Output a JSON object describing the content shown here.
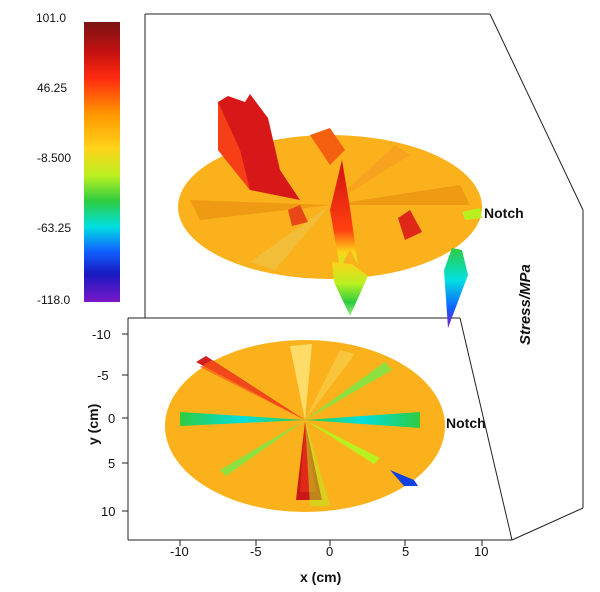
{
  "chart_data": {
    "type": "heatmap",
    "title": "",
    "zlabel": "Stress/MPa",
    "xlabel": "x (cm)",
    "ylabel": "y (cm)",
    "annotation_top": "Notch",
    "annotation_bottom": "Notch",
    "colorbar": {
      "ticks": [
        "101.0",
        "46.25",
        "-8.500",
        "-63.25",
        "-118.0"
      ],
      "min": -118.0,
      "max": 101.0,
      "colors": [
        "#7a1414",
        "#c01010",
        "#ff2a10",
        "#ff9800",
        "#ffd21a",
        "#b8f020",
        "#2ecc40",
        "#00e0e0",
        "#1060ff",
        "#1818c0",
        "#7a18c8"
      ]
    },
    "x_ticks": [
      "-10",
      "-5",
      "0",
      "5",
      "10"
    ],
    "y_ticks": [
      "-10",
      "-5",
      "0",
      "5",
      "10"
    ],
    "xlim": [
      -12,
      10
    ],
    "ylim": [
      -10,
      10
    ],
    "surface_base_color": "#fbb11c"
  }
}
